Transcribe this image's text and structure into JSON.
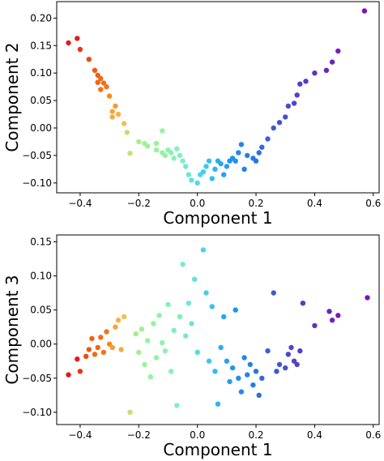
{
  "chart_data": [
    {
      "type": "scatter",
      "title": "",
      "xlabel": "Component 1",
      "ylabel": "Component 2",
      "xlim": [
        -0.48,
        0.62
      ],
      "ylim": [
        -0.118,
        0.23
      ],
      "xticks": [
        -0.4,
        -0.2,
        0.0,
        0.2,
        0.4,
        0.6
      ],
      "yticks": [
        -0.1,
        -0.05,
        0.0,
        0.05,
        0.1,
        0.15,
        0.2
      ],
      "xtick_labels": [
        "−0.4",
        "−0.2",
        "0.0",
        "0.2",
        "0.4",
        "0.6"
      ],
      "ytick_labels": [
        "−0.10",
        "−0.05",
        "0.00",
        "0.05",
        "0.10",
        "0.15",
        "0.20"
      ],
      "grid": false,
      "color_scale": "rainbow",
      "points": [
        {
          "x": -0.44,
          "y": 0.155,
          "c": "#e41a1c"
        },
        {
          "x": -0.41,
          "y": 0.163,
          "c": "#e41a1c"
        },
        {
          "x": -0.4,
          "y": 0.143,
          "c": "#e83418"
        },
        {
          "x": -0.37,
          "y": 0.125,
          "c": "#ef4a14"
        },
        {
          "x": -0.35,
          "y": 0.105,
          "c": "#f05a14"
        },
        {
          "x": -0.34,
          "y": 0.096,
          "c": "#f25f12"
        },
        {
          "x": -0.33,
          "y": 0.09,
          "c": "#f26a13"
        },
        {
          "x": -0.34,
          "y": 0.083,
          "c": "#f06414"
        },
        {
          "x": -0.32,
          "y": 0.082,
          "c": "#f26d14"
        },
        {
          "x": -0.31,
          "y": 0.075,
          "c": "#f47418"
        },
        {
          "x": -0.33,
          "y": 0.07,
          "c": "#f47018"
        },
        {
          "x": -0.3,
          "y": 0.058,
          "c": "#f7891a"
        },
        {
          "x": -0.28,
          "y": 0.04,
          "c": "#f89a2e"
        },
        {
          "x": -0.29,
          "y": 0.03,
          "c": "#f9a43a"
        },
        {
          "x": -0.27,
          "y": 0.025,
          "c": "#fab04a"
        },
        {
          "x": -0.29,
          "y": 0.02,
          "c": "#f9a844"
        },
        {
          "x": -0.25,
          "y": 0.008,
          "c": "#e6c35a"
        },
        {
          "x": -0.24,
          "y": -0.008,
          "c": "#cfd96a"
        },
        {
          "x": -0.23,
          "y": -0.046,
          "c": "#c6e06e"
        },
        {
          "x": -0.2,
          "y": -0.025,
          "c": "#a4ee8a"
        },
        {
          "x": -0.18,
          "y": -0.028,
          "c": "#9ef28f"
        },
        {
          "x": -0.17,
          "y": -0.033,
          "c": "#9af394"
        },
        {
          "x": -0.14,
          "y": -0.028,
          "c": "#96f499"
        },
        {
          "x": -0.14,
          "y": -0.04,
          "c": "#93f49c"
        },
        {
          "x": -0.12,
          "y": -0.045,
          "c": "#90f4a0"
        },
        {
          "x": -0.11,
          "y": -0.05,
          "c": "#8ef4a4"
        },
        {
          "x": -0.12,
          "y": -0.005,
          "c": "#94f49c"
        },
        {
          "x": -0.1,
          "y": -0.04,
          "c": "#8bf3aa"
        },
        {
          "x": -0.09,
          "y": -0.045,
          "c": "#88f3ae"
        },
        {
          "x": -0.08,
          "y": -0.055,
          "c": "#86f2b2"
        },
        {
          "x": -0.07,
          "y": -0.038,
          "c": "#84f2b6"
        },
        {
          "x": -0.06,
          "y": -0.05,
          "c": "#80f0bc"
        },
        {
          "x": -0.05,
          "y": -0.06,
          "c": "#7aeec4"
        },
        {
          "x": -0.04,
          "y": -0.07,
          "c": "#72ebcc"
        },
        {
          "x": -0.03,
          "y": -0.085,
          "c": "#6ae6d4"
        },
        {
          "x": -0.02,
          "y": -0.095,
          "c": "#5ee2dc"
        },
        {
          "x": 0.0,
          "y": -0.1,
          "c": "#50dce4"
        },
        {
          "x": 0.01,
          "y": -0.085,
          "c": "#46d6e8"
        },
        {
          "x": 0.02,
          "y": -0.08,
          "c": "#40d0ea"
        },
        {
          "x": 0.03,
          "y": -0.07,
          "c": "#3ac8ee"
        },
        {
          "x": 0.04,
          "y": -0.06,
          "c": "#34c0f0"
        },
        {
          "x": 0.05,
          "y": -0.092,
          "c": "#30bcf2"
        },
        {
          "x": 0.06,
          "y": -0.075,
          "c": "#2cb4f2"
        },
        {
          "x": 0.07,
          "y": -0.06,
          "c": "#28aef2"
        },
        {
          "x": 0.08,
          "y": -0.065,
          "c": "#26a8f2"
        },
        {
          "x": 0.09,
          "y": -0.085,
          "c": "#24a2f0"
        },
        {
          "x": 0.1,
          "y": -0.07,
          "c": "#22a0f0"
        },
        {
          "x": 0.11,
          "y": -0.06,
          "c": "#2098ee"
        },
        {
          "x": 0.12,
          "y": -0.055,
          "c": "#2094ec"
        },
        {
          "x": 0.13,
          "y": -0.06,
          "c": "#2090ea"
        },
        {
          "x": 0.14,
          "y": -0.045,
          "c": "#228ae8"
        },
        {
          "x": 0.15,
          "y": -0.03,
          "c": "#2486e6"
        },
        {
          "x": 0.16,
          "y": -0.075,
          "c": "#2484e4"
        },
        {
          "x": 0.17,
          "y": -0.05,
          "c": "#2680e2"
        },
        {
          "x": 0.19,
          "y": -0.055,
          "c": "#2a7ae0"
        },
        {
          "x": 0.2,
          "y": -0.06,
          "c": "#2e74de"
        },
        {
          "x": 0.21,
          "y": -0.045,
          "c": "#326edc"
        },
        {
          "x": 0.22,
          "y": -0.035,
          "c": "#3668da"
        },
        {
          "x": 0.24,
          "y": -0.02,
          "c": "#3a60d8"
        },
        {
          "x": 0.26,
          "y": 0.0,
          "c": "#3e5ad6"
        },
        {
          "x": 0.28,
          "y": 0.01,
          "c": "#4254d4"
        },
        {
          "x": 0.3,
          "y": 0.02,
          "c": "#464ed2"
        },
        {
          "x": 0.31,
          "y": 0.04,
          "c": "#4a48d0"
        },
        {
          "x": 0.33,
          "y": 0.045,
          "c": "#4e44ce"
        },
        {
          "x": 0.34,
          "y": 0.06,
          "c": "#5240cc"
        },
        {
          "x": 0.35,
          "y": 0.08,
          "c": "#563cca"
        },
        {
          "x": 0.37,
          "y": 0.085,
          "c": "#5a38c8"
        },
        {
          "x": 0.4,
          "y": 0.1,
          "c": "#6030c6"
        },
        {
          "x": 0.44,
          "y": 0.105,
          "c": "#6a24c4"
        },
        {
          "x": 0.46,
          "y": 0.12,
          "c": "#7020c2"
        },
        {
          "x": 0.48,
          "y": 0.14,
          "c": "#761cc0"
        },
        {
          "x": 0.57,
          "y": 0.213,
          "c": "#8010be"
        }
      ]
    },
    {
      "type": "scatter",
      "title": "",
      "xlabel": "Component 1",
      "ylabel": "Component 3",
      "xlim": [
        -0.48,
        0.62
      ],
      "ylim": [
        -0.118,
        0.16
      ],
      "xticks": [
        -0.4,
        -0.2,
        0.0,
        0.2,
        0.4,
        0.6
      ],
      "yticks": [
        -0.1,
        -0.05,
        0.0,
        0.05,
        0.1,
        0.15
      ],
      "xtick_labels": [
        "−0.4",
        "−0.2",
        "0.0",
        "0.2",
        "0.4",
        "0.6"
      ],
      "ytick_labels": [
        "−0.10",
        "−0.05",
        "0.00",
        "0.05",
        "0.10",
        "0.15"
      ],
      "grid": false,
      "color_scale": "rainbow",
      "points": [
        {
          "x": -0.44,
          "y": -0.045,
          "c": "#e41a1c"
        },
        {
          "x": -0.41,
          "y": -0.022,
          "c": "#e41a1c"
        },
        {
          "x": -0.4,
          "y": -0.04,
          "c": "#e83418"
        },
        {
          "x": -0.38,
          "y": -0.018,
          "c": "#ef4a14"
        },
        {
          "x": -0.37,
          "y": -0.008,
          "c": "#f05a14"
        },
        {
          "x": -0.36,
          "y": 0.008,
          "c": "#f25f12"
        },
        {
          "x": -0.35,
          "y": -0.015,
          "c": "#f26a13"
        },
        {
          "x": -0.34,
          "y": -0.005,
          "c": "#f06414"
        },
        {
          "x": -0.33,
          "y": 0.01,
          "c": "#f26d14"
        },
        {
          "x": -0.32,
          "y": -0.012,
          "c": "#f47418"
        },
        {
          "x": -0.31,
          "y": 0.018,
          "c": "#f47018"
        },
        {
          "x": -0.3,
          "y": 0.0,
          "c": "#f7891a"
        },
        {
          "x": -0.29,
          "y": -0.005,
          "c": "#f89a2e"
        },
        {
          "x": -0.28,
          "y": 0.025,
          "c": "#f9a43a"
        },
        {
          "x": -0.27,
          "y": 0.035,
          "c": "#fab04a"
        },
        {
          "x": -0.26,
          "y": -0.008,
          "c": "#f9a844"
        },
        {
          "x": -0.25,
          "y": 0.04,
          "c": "#e6c35a"
        },
        {
          "x": -0.23,
          "y": -0.1,
          "c": "#c6e06e"
        },
        {
          "x": -0.21,
          "y": 0.015,
          "c": "#a4ee8a"
        },
        {
          "x": -0.2,
          "y": -0.012,
          "c": "#a0f08e"
        },
        {
          "x": -0.19,
          "y": 0.022,
          "c": "#9ef28f"
        },
        {
          "x": -0.18,
          "y": -0.03,
          "c": "#9af394"
        },
        {
          "x": -0.17,
          "y": 0.005,
          "c": "#98f496"
        },
        {
          "x": -0.16,
          "y": -0.048,
          "c": "#96f499"
        },
        {
          "x": -0.15,
          "y": 0.03,
          "c": "#93f49c"
        },
        {
          "x": -0.14,
          "y": -0.02,
          "c": "#90f4a0"
        },
        {
          "x": -0.13,
          "y": 0.042,
          "c": "#8ef4a4"
        },
        {
          "x": -0.12,
          "y": 0.002,
          "c": "#8bf3aa"
        },
        {
          "x": -0.11,
          "y": -0.01,
          "c": "#88f3ae"
        },
        {
          "x": -0.1,
          "y": 0.058,
          "c": "#86f2b2"
        },
        {
          "x": -0.09,
          "y": -0.04,
          "c": "#84f2b6"
        },
        {
          "x": -0.08,
          "y": 0.02,
          "c": "#80f0bc"
        },
        {
          "x": -0.07,
          "y": -0.09,
          "c": "#7eefc0"
        },
        {
          "x": -0.06,
          "y": 0.04,
          "c": "#7aeec4"
        },
        {
          "x": -0.05,
          "y": 0.117,
          "c": "#76ecc8"
        },
        {
          "x": -0.04,
          "y": 0.012,
          "c": "#72ebcc"
        },
        {
          "x": -0.03,
          "y": 0.06,
          "c": "#6ee8d0"
        },
        {
          "x": -0.02,
          "y": 0.03,
          "c": "#6ae6d4"
        },
        {
          "x": -0.01,
          "y": 0.095,
          "c": "#5ee2dc"
        },
        {
          "x": 0.0,
          "y": -0.012,
          "c": "#50dce4"
        },
        {
          "x": 0.02,
          "y": 0.138,
          "c": "#46d6e8"
        },
        {
          "x": 0.03,
          "y": 0.075,
          "c": "#40d0ea"
        },
        {
          "x": 0.04,
          "y": -0.025,
          "c": "#3ac8ee"
        },
        {
          "x": 0.05,
          "y": 0.055,
          "c": "#34c0f0"
        },
        {
          "x": 0.06,
          "y": -0.04,
          "c": "#30bcf2"
        },
        {
          "x": 0.07,
          "y": -0.088,
          "c": "#2cb4f2"
        },
        {
          "x": 0.08,
          "y": -0.005,
          "c": "#28aef2"
        },
        {
          "x": 0.09,
          "y": 0.04,
          "c": "#26a8f2"
        },
        {
          "x": 0.1,
          "y": -0.025,
          "c": "#24a2f0"
        },
        {
          "x": 0.11,
          "y": -0.055,
          "c": "#22a0f0"
        },
        {
          "x": 0.12,
          "y": -0.035,
          "c": "#2098ee"
        },
        {
          "x": 0.13,
          "y": 0.05,
          "c": "#2094ec"
        },
        {
          "x": 0.14,
          "y": -0.05,
          "c": "#2090ea"
        },
        {
          "x": 0.15,
          "y": -0.07,
          "c": "#228ae8"
        },
        {
          "x": 0.16,
          "y": -0.02,
          "c": "#2486e6"
        },
        {
          "x": 0.17,
          "y": -0.045,
          "c": "#2484e4"
        },
        {
          "x": 0.18,
          "y": -0.03,
          "c": "#2680e2"
        },
        {
          "x": 0.19,
          "y": -0.06,
          "c": "#2a7ae0"
        },
        {
          "x": 0.2,
          "y": -0.04,
          "c": "#2e74de"
        },
        {
          "x": 0.21,
          "y": -0.075,
          "c": "#326edc"
        },
        {
          "x": 0.22,
          "y": -0.05,
          "c": "#3668da"
        },
        {
          "x": 0.24,
          "y": -0.01,
          "c": "#3a60d8"
        },
        {
          "x": 0.26,
          "y": 0.075,
          "c": "#3e5ad6"
        },
        {
          "x": 0.27,
          "y": -0.04,
          "c": "#4058d4"
        },
        {
          "x": 0.28,
          "y": -0.03,
          "c": "#4254d4"
        },
        {
          "x": 0.3,
          "y": -0.035,
          "c": "#464ed2"
        },
        {
          "x": 0.31,
          "y": -0.015,
          "c": "#4a48d0"
        },
        {
          "x": 0.32,
          "y": -0.005,
          "c": "#4c46cf"
        },
        {
          "x": 0.33,
          "y": -0.025,
          "c": "#4e44ce"
        },
        {
          "x": 0.34,
          "y": -0.03,
          "c": "#5240cc"
        },
        {
          "x": 0.35,
          "y": -0.01,
          "c": "#563cca"
        },
        {
          "x": 0.36,
          "y": 0.06,
          "c": "#5838c9"
        },
        {
          "x": 0.4,
          "y": 0.027,
          "c": "#6030c6"
        },
        {
          "x": 0.45,
          "y": 0.048,
          "c": "#6a24c4"
        },
        {
          "x": 0.46,
          "y": 0.035,
          "c": "#7020c2"
        },
        {
          "x": 0.48,
          "y": 0.042,
          "c": "#761cc0"
        },
        {
          "x": 0.58,
          "y": 0.068,
          "c": "#8010be"
        }
      ]
    }
  ]
}
